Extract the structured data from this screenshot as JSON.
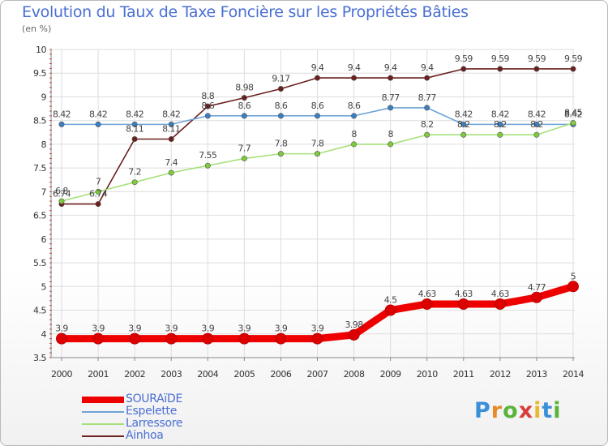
{
  "header": {
    "title": "Evolution du Taux de Taxe Foncière sur les Propriétés Bâties",
    "unit": "(en %)"
  },
  "logo": {
    "text": "Proxiti"
  },
  "colors": {
    "title": "#4a6fd2",
    "grid": "#dddddd",
    "axis": "#888888",
    "minor_tick": "#cc3333"
  },
  "chart_data": {
    "type": "line",
    "title": "Evolution du Taux de Taxe Foncière sur les Propriétés Bâties",
    "ylabel": "(en %)",
    "xlabel": "",
    "ylim": [
      3.5,
      10
    ],
    "yticks": [
      3.5,
      4,
      4.5,
      5,
      5.5,
      6,
      6.5,
      7,
      7.5,
      8,
      8.5,
      9,
      9.5,
      10
    ],
    "yticklabels": [
      "3.5",
      "4",
      "4.5",
      "5",
      "5.5",
      "6",
      "6.5",
      "7",
      "7.5",
      "8",
      "8.5",
      "9",
      "9.5",
      "10"
    ],
    "grid": true,
    "legend_position": "bottom-left",
    "categories": [
      "2000",
      "2001",
      "2002",
      "2003",
      "2004",
      "2005",
      "2006",
      "2007",
      "2008",
      "2009",
      "2010",
      "2011",
      "2012",
      "2013",
      "2014"
    ],
    "series": [
      {
        "name": "Ainhoa",
        "color": "#6b1f1f",
        "marker": "#6b1f1f",
        "label_color": "#444444",
        "values": [
          6.74,
          6.74,
          8.11,
          8.11,
          8.8,
          8.98,
          9.17,
          9.4,
          9.4,
          9.4,
          9.4,
          9.59,
          9.59,
          9.59,
          9.59
        ],
        "labels": [
          "6.74",
          "6.74",
          "8.11",
          "8.11",
          "8.8",
          "8.98",
          "9.17",
          "9.4",
          "9.4",
          "9.4",
          "9.4",
          "9.59",
          "9.59",
          "9.59",
          "9.59"
        ]
      },
      {
        "name": "Espelette",
        "color": "#6ea3d6",
        "marker": "#3a7fc4",
        "label_color": "#444444",
        "values": [
          8.42,
          8.42,
          8.42,
          8.42,
          8.6,
          8.6,
          8.6,
          8.6,
          8.6,
          8.77,
          8.77,
          8.42,
          8.42,
          8.42,
          8.42
        ],
        "labels": [
          "8.42",
          "8.42",
          "8.42",
          "8.42",
          "8.6",
          "8.6",
          "8.6",
          "8.6",
          "8.6",
          "8.77",
          "8.77",
          "8.42",
          "8.42",
          "8.42",
          "8.42"
        ]
      },
      {
        "name": "Larressore",
        "color": "#a6e07a",
        "marker": "#7ecc3a",
        "label_color": "#444444",
        "values": [
          6.8,
          7,
          7.2,
          7.4,
          7.55,
          7.7,
          7.8,
          7.8,
          8,
          8,
          8.2,
          8.2,
          8.2,
          8.2,
          8.45
        ],
        "labels": [
          "6.8",
          "7",
          "7.2",
          "7.4",
          "7.55",
          "7.7",
          "7.8",
          "7.8",
          "8",
          "8",
          "8.2",
          "8.2",
          "8.2",
          "8.2",
          "8.45"
        ]
      },
      {
        "name": "SOURAïDE",
        "color": "#ee0000",
        "marker": "#dd0000",
        "label_color": "#444444",
        "values": [
          3.9,
          3.9,
          3.9,
          3.9,
          3.9,
          3.9,
          3.9,
          3.9,
          3.98,
          4.5,
          4.63,
          4.63,
          4.63,
          4.77,
          5
        ],
        "labels": [
          "3.9",
          "3.9",
          "3.9",
          "3.9",
          "3.9",
          "3.9",
          "3.9",
          "3.9",
          "3.98",
          "4.5",
          "4.63",
          "4.63",
          "4.63",
          "4.77",
          "5"
        ]
      }
    ],
    "legend": [
      {
        "name": "SOURAïDE",
        "color": "#ee0000"
      },
      {
        "name": "Espelette",
        "color": "#6ea3d6"
      },
      {
        "name": "Larressore",
        "color": "#a6e07a"
      },
      {
        "name": "Ainhoa",
        "color": "#6b1f1f"
      }
    ]
  }
}
